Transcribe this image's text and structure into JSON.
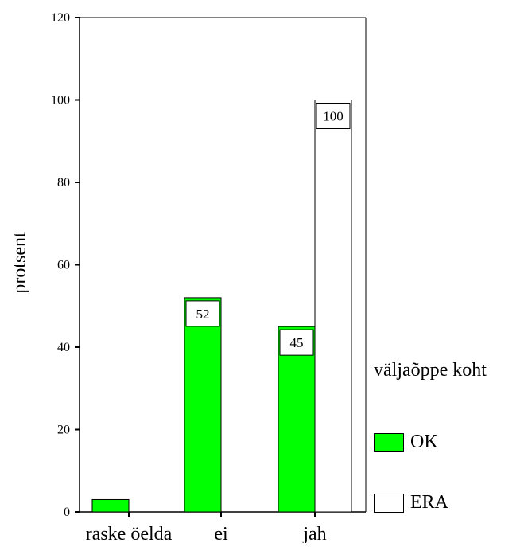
{
  "chart_data": {
    "type": "bar",
    "ylabel": "protsent",
    "xlabel": "",
    "ylim": [
      0,
      120
    ],
    "yticks": [
      0,
      20,
      40,
      60,
      80,
      100,
      120
    ],
    "categories": [
      "raske öelda",
      "ei",
      "jah"
    ],
    "legend_title": "väljaõppe koht",
    "legend_position": "right",
    "grid": false,
    "series": [
      {
        "name": "OK",
        "color": "#00ff00",
        "values": [
          3,
          52,
          45
        ],
        "labels": [
          "",
          "52",
          "45"
        ]
      },
      {
        "name": "ERA",
        "color": "#ffffff",
        "values": [
          null,
          null,
          100
        ],
        "labels": [
          "",
          "",
          "100"
        ]
      }
    ]
  }
}
